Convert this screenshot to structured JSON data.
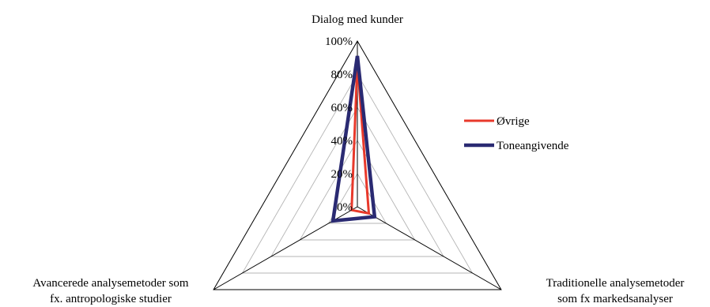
{
  "chart_data": {
    "type": "radar",
    "axes": [
      [
        "Dialog med kunder"
      ],
      [
        "Traditionelle analysemetoder",
        "som fx markedsanalyser"
      ],
      [
        "Avancerede analysemetoder som",
        "fx. antropologiske studier"
      ]
    ],
    "ticks": [
      "0%",
      "20%",
      "40%",
      "60%",
      "80%",
      "100%"
    ],
    "rmax": 100,
    "grid": true,
    "legend_position": "right",
    "series": [
      {
        "name": "Øvrige",
        "color": "#e8392b",
        "values": [
          87,
          8,
          4
        ]
      },
      {
        "name": "Toneangivende",
        "color": "#2a2a72",
        "values": [
          91,
          12,
          17
        ]
      }
    ]
  }
}
